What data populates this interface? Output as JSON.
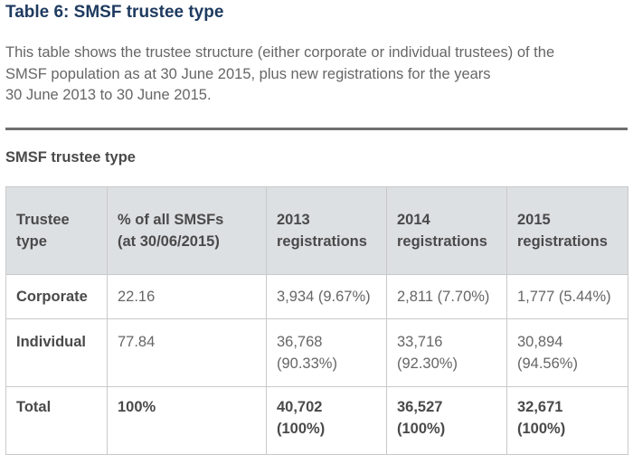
{
  "document": {
    "title": "Table 6: SMSF trustee type",
    "intro_lines": [
      "This table shows the trustee structure (either corporate or individual trustees) of the",
      "SMSF population as at 30  June  2015, plus new registrations for the years",
      "30  June  2013 to 30  June  2015."
    ]
  },
  "table": {
    "caption": "SMSF trustee type",
    "headers": [
      [
        "Trustee",
        "type"
      ],
      [
        "% of all SMSFs",
        "(at 30/06/2015)"
      ],
      [
        "2013",
        "registrations"
      ],
      [
        "2014",
        "registrations"
      ],
      [
        "2015",
        "registrations"
      ]
    ],
    "rows": [
      {
        "label": "Corporate",
        "pct": "22.16",
        "cells": [
          [
            "3,934 (9.67%)"
          ],
          [
            "2,811 (7.70%)"
          ],
          [
            "1,777 (5.44%)"
          ]
        ]
      },
      {
        "label": "Individual",
        "pct": "77.84",
        "cells": [
          [
            "36,768",
            "(90.33%)"
          ],
          [
            "33,716",
            "(92.30%)"
          ],
          [
            "30,894",
            "(94.56%)"
          ]
        ]
      },
      {
        "label": "Total",
        "pct": "100%",
        "cells": [
          [
            "40,702",
            "(100%)"
          ],
          [
            "36,527",
            "(100%)"
          ],
          [
            "32,671",
            "(100%)"
          ]
        ]
      }
    ]
  }
}
